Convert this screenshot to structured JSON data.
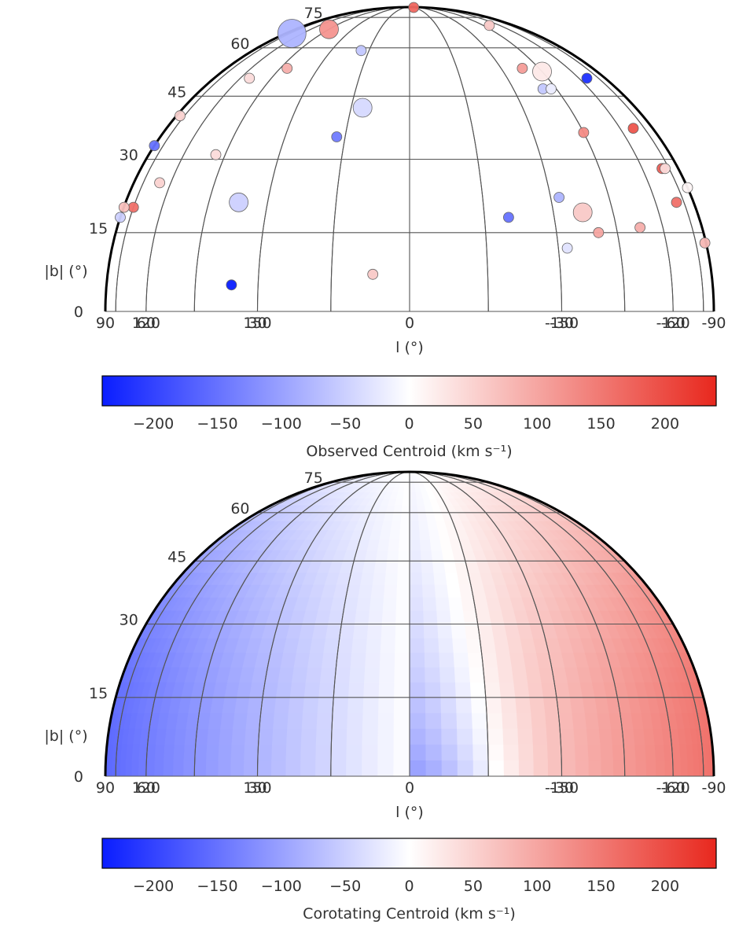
{
  "colors": {
    "cmap_low": "#0a1dff",
    "cmap_mid": "#ffffff",
    "cmap_high": "#e8281e",
    "grid": "#555555",
    "outline": "#000000",
    "text": "#333333"
  },
  "chart_data": [
    {
      "type": "scatter",
      "projection": "upper-hemisphere all-sky (orthographic), l increasing to the left",
      "xlabel": "l (°)",
      "ylabel": "|b| (°)",
      "xticks": [
        "150",
        "120",
        "90",
        "60",
        "30",
        "0",
        "-30",
        "-60",
        "-90",
        "-120",
        "-150"
      ],
      "yticks": [
        "75",
        "60",
        "45",
        "30",
        "15",
        "0"
      ],
      "xlim": [
        180,
        -180
      ],
      "ylim": [
        0,
        90
      ],
      "grid": true,
      "colorbar": {
        "label": "Observed Centroid (km s⁻¹)",
        "range": [
          -240,
          240
        ],
        "ticks": [
          "−200",
          "−150",
          "−100",
          "−50",
          "0",
          "50",
          "100",
          "150",
          "200"
        ],
        "tick_values": [
          -200,
          -150,
          -100,
          -50,
          0,
          50,
          100,
          150,
          200
        ]
      },
      "points": [
        {
          "l": 72,
          "b": 66,
          "v": -80,
          "size": 3
        },
        {
          "l": 45,
          "b": 68,
          "v": 120,
          "size": 2
        },
        {
          "l": -15,
          "b": 87,
          "v": 170,
          "size": 1
        },
        {
          "l": -50,
          "b": 70,
          "v": 60,
          "size": 1
        },
        {
          "l": 18,
          "b": 59,
          "v": -60,
          "size": 1
        },
        {
          "l": 55,
          "b": 50,
          "v": 40,
          "size": 1
        },
        {
          "l": 42,
          "b": 53,
          "v": 90,
          "size": 1
        },
        {
          "l": -38,
          "b": 53,
          "v": 110,
          "size": 1
        },
        {
          "l": -45,
          "b": 52,
          "v": 25,
          "size": 2
        },
        {
          "l": -65,
          "b": 50,
          "v": -220,
          "size": 1
        },
        {
          "l": -40,
          "b": 47,
          "v": -60,
          "size": 1
        },
        {
          "l": -43,
          "b": 47,
          "v": -20,
          "size": 1
        },
        {
          "l": 80,
          "b": 40,
          "v": 50,
          "size": 1
        },
        {
          "l": 12,
          "b": 42,
          "v": -40,
          "size": 2
        },
        {
          "l": 90,
          "b": 33,
          "v": -150,
          "size": 1
        },
        {
          "l": 17,
          "b": 35,
          "v": -140,
          "size": 1
        },
        {
          "l": -45,
          "b": 36,
          "v": 130,
          "size": 1
        },
        {
          "l": -67,
          "b": 37,
          "v": 190,
          "size": 1
        },
        {
          "l": 48,
          "b": 31,
          "v": 40,
          "size": 1
        },
        {
          "l": 115,
          "b": 25,
          "v": 50,
          "size": 1
        },
        {
          "l": -70,
          "b": 28,
          "v": 180,
          "size": 1
        },
        {
          "l": -72,
          "b": 28,
          "v": 40,
          "size": 1
        },
        {
          "l": 105,
          "b": 20,
          "v": 160,
          "size": 1
        },
        {
          "l": 93,
          "b": 20,
          "v": 70,
          "size": 1
        },
        {
          "l": 89,
          "b": 18,
          "v": -50,
          "size": 1
        },
        {
          "l": 37,
          "b": 21,
          "v": -50,
          "size": 2
        },
        {
          "l": -32,
          "b": 22,
          "v": -80,
          "size": 1
        },
        {
          "l": -37,
          "b": 19,
          "v": 60,
          "size": 2
        },
        {
          "l": -20,
          "b": 18,
          "v": -150,
          "size": 1
        },
        {
          "l": -40,
          "b": 15,
          "v": 100,
          "size": 1
        },
        {
          "l": -32,
          "b": 12,
          "v": -30,
          "size": 1
        },
        {
          "l": -90,
          "b": 24,
          "v": 10,
          "size": 1
        },
        {
          "l": -110,
          "b": 21,
          "v": 160,
          "size": 1
        },
        {
          "l": -128,
          "b": 16,
          "v": 90,
          "size": 1
        },
        {
          "l": -95,
          "b": 13,
          "v": 80,
          "size": 1
        },
        {
          "l": 36,
          "b": 5,
          "v": -240,
          "size": 1
        },
        {
          "l": 7,
          "b": 7,
          "v": 60,
          "size": 1
        }
      ]
    },
    {
      "type": "heatmap",
      "projection": "upper-hemisphere all-sky (orthographic), l increasing to the left",
      "xlabel": "l (°)",
      "ylabel": "|b| (°)",
      "xticks": [
        "150",
        "120",
        "90",
        "60",
        "30",
        "0",
        "-30",
        "-60",
        "-90",
        "-120",
        "-150"
      ],
      "yticks": [
        "75",
        "60",
        "45",
        "30",
        "15",
        "0"
      ],
      "xlim": [
        180,
        -180
      ],
      "ylim": [
        0,
        90
      ],
      "grid": true,
      "field": "corotating gas velocity, negative for 0<l<180 and positive for -180<l<0, strongest near |l|≈90, low latitude",
      "colorbar": {
        "label": "Corotating Centroid (km s⁻¹)",
        "range": [
          -240,
          240
        ],
        "ticks": [
          "−200",
          "−150",
          "−100",
          "−50",
          "0",
          "50",
          "100",
          "150",
          "200"
        ],
        "tick_values": [
          -200,
          -150,
          -100,
          -50,
          0,
          50,
          100,
          150,
          200
        ]
      }
    }
  ]
}
